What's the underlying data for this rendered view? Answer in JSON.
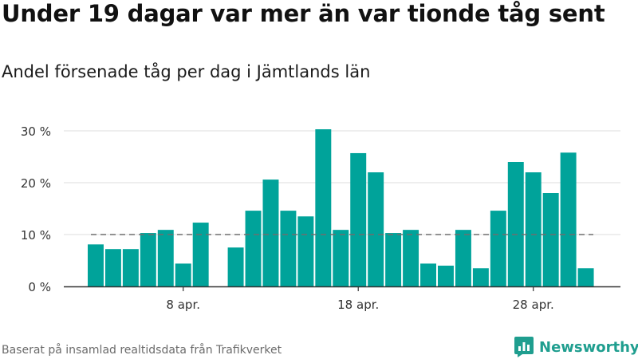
{
  "header": {
    "title": "Under 19 dagar var mer än var tionde tåg sent",
    "subtitle": "Andel försenade tåg per dag i Jämtlands län"
  },
  "footer": {
    "source": "Baserat på insamlad realtidsdata från Trafikverket",
    "logo_text": "Newsworthy",
    "logo_icon": "bar-chart-speech-bubble-icon"
  },
  "colors": {
    "bar": "#00a39a",
    "reference_line": "#6e6e6e",
    "grid": "#dcdcdc",
    "axis": "#333333",
    "logo": "#1f9e8f"
  },
  "chart_data": {
    "type": "bar",
    "title": "",
    "xlabel": "",
    "ylabel": "",
    "x_start_day": 3,
    "x_month_label": "apr.",
    "xticks": [
      {
        "day": 8,
        "label": "8 apr."
      },
      {
        "day": 18,
        "label": "18 apr."
      },
      {
        "day": 28,
        "label": "28 apr."
      }
    ],
    "ylim": [
      0,
      32
    ],
    "yticks": [
      {
        "value": 0,
        "label": "0 %"
      },
      {
        "value": 10,
        "label": "10 %"
      },
      {
        "value": 20,
        "label": "20 %"
      },
      {
        "value": 30,
        "label": "30 %"
      }
    ],
    "grid": true,
    "reference_line": 10,
    "values": [
      8.1,
      7.2,
      7.2,
      10.3,
      10.9,
      4.4,
      12.3,
      0,
      7.5,
      14.6,
      20.6,
      14.6,
      13.5,
      30.3,
      10.9,
      25.7,
      22.0,
      10.3,
      10.9,
      4.4,
      4.0,
      10.9,
      3.5,
      14.6,
      24.0,
      22.0,
      18.0,
      25.8,
      3.5
    ]
  }
}
